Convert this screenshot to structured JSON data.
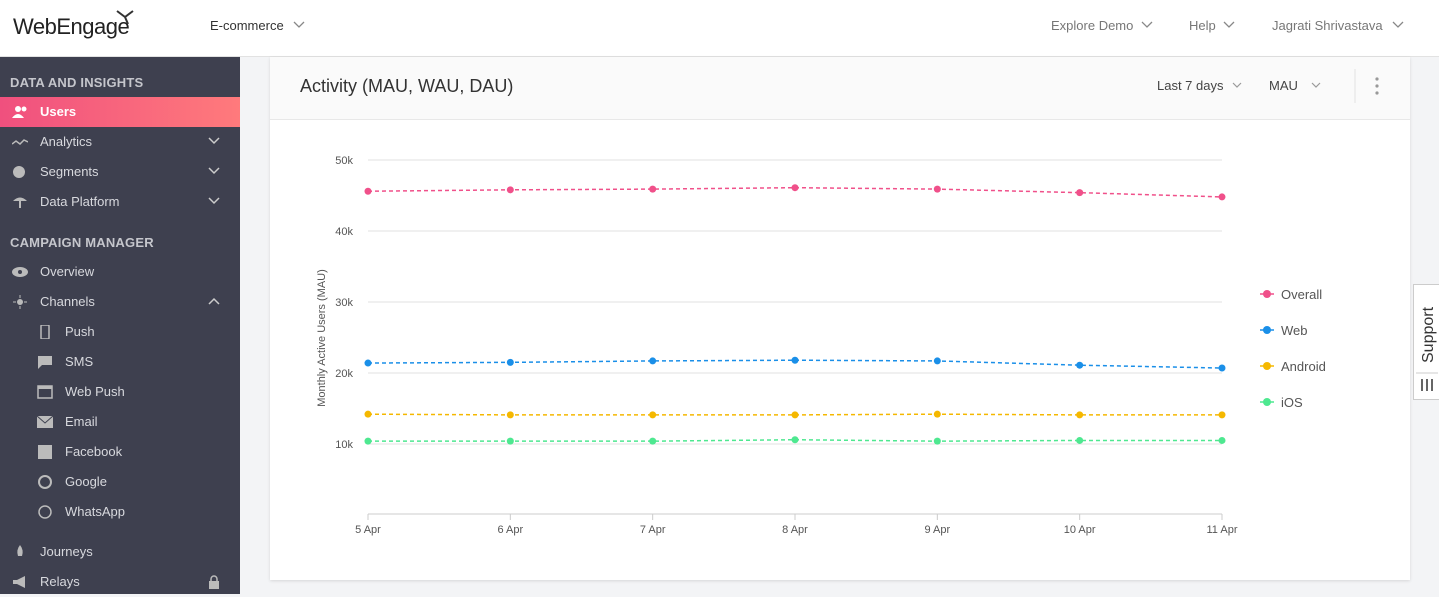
{
  "header": {
    "logo": "WebEngage",
    "project": "E-commerce",
    "nav": [
      "Explore Demo",
      "Help",
      "Jagrati Shrivastava"
    ]
  },
  "sidebar": {
    "sections": [
      {
        "title": "DATA AND INSIGHTS",
        "items": [
          "Users",
          "Analytics",
          "Segments",
          "Data Platform"
        ]
      },
      {
        "title": "CAMPAIGN MANAGER",
        "items": [
          "Overview",
          "Channels",
          "Push",
          "SMS",
          "Web Push",
          "Email",
          "Facebook",
          "Google",
          "WhatsApp",
          "Journeys",
          "Relays"
        ]
      }
    ]
  },
  "card": {
    "title": "Activity (MAU, WAU, DAU)",
    "filters": [
      "Last 7 days",
      "MAU"
    ]
  },
  "support": "Support",
  "chart_data": {
    "type": "line",
    "y_label": "Monthly Active Users (MAU)",
    "categories": [
      "5 Apr",
      "6 Apr",
      "7 Apr",
      "8 Apr",
      "9 Apr",
      "10 Apr",
      "11 Apr"
    ],
    "series": [
      {
        "name": "Overall",
        "color": "#f0508a",
        "values": [
          45600,
          45800,
          45900,
          46100,
          45900,
          45400,
          44800
        ]
      },
      {
        "name": "Web",
        "color": "#1a8fe8",
        "values": [
          21400,
          21500,
          21700,
          21800,
          21700,
          21100,
          20700
        ]
      },
      {
        "name": "Android",
        "color": "#f5b800",
        "values": [
          14200,
          14100,
          14100,
          14100,
          14200,
          14100,
          14100
        ]
      },
      {
        "name": "iOS",
        "color": "#4ee890",
        "values": [
          10400,
          10400,
          10400,
          10600,
          10400,
          10500,
          10500
        ]
      }
    ],
    "ylim": [
      0,
      50000
    ],
    "yticks": [
      {
        "value": 10000,
        "label": "10k"
      },
      {
        "value": 20000,
        "label": "20k"
      },
      {
        "value": 30000,
        "label": "30k"
      },
      {
        "value": 40000,
        "label": "40k"
      },
      {
        "value": 50000,
        "label": "50k"
      }
    ],
    "grid": true,
    "legend": "right"
  }
}
